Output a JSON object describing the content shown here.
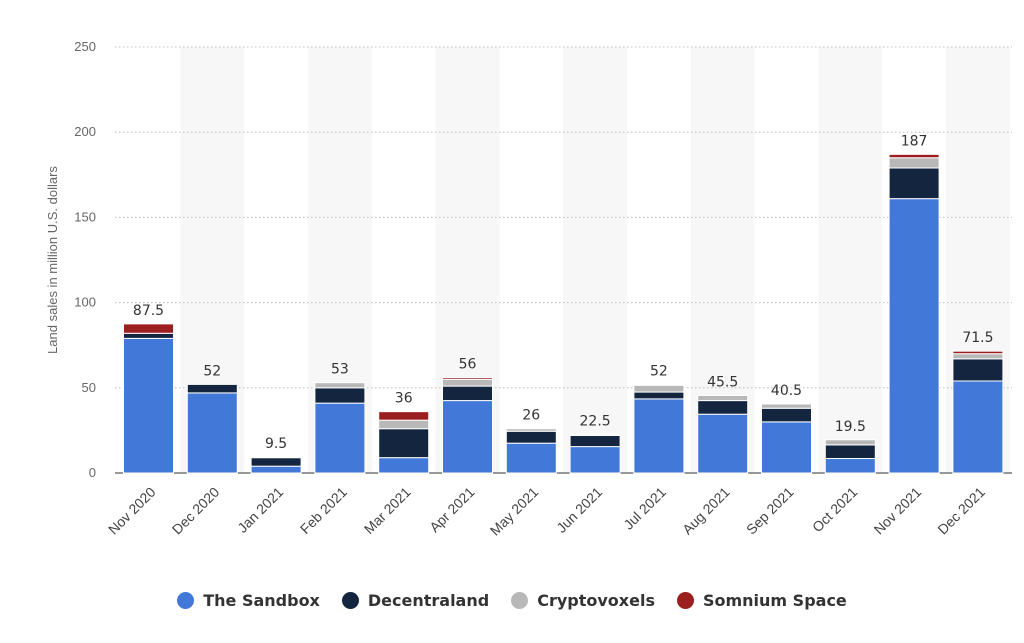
{
  "chart_data": {
    "type": "bar",
    "stacked": true,
    "ylabel": "Land sales in million U.S. dollars",
    "ylim": [
      0,
      250
    ],
    "yticks": [
      0,
      50,
      100,
      150,
      200,
      250
    ],
    "grid": true,
    "legend_position": "bottom",
    "categories": [
      "Nov 2020",
      "Dec 2020",
      "Jan 2021",
      "Feb 2021",
      "Mar 2021",
      "Apr 2021",
      "May 2021",
      "Jun 2021",
      "Jul 2021",
      "Aug 2021",
      "Sep 2021",
      "Oct 2021",
      "Nov 2021",
      "Dec 2021"
    ],
    "totals": [
      "87.5",
      "52",
      "9.5",
      "53",
      "36",
      "56",
      "26",
      "22.5",
      "52",
      "45.5",
      "40.5",
      "19.5",
      "187",
      "71.5"
    ],
    "series": [
      {
        "name": "The Sandbox",
        "color": "#4278d8",
        "values": [
          79,
          47,
          4,
          41,
          9,
          42.5,
          17.5,
          15.5,
          43.5,
          34.5,
          30,
          8.5,
          161,
          54
        ]
      },
      {
        "name": "Decentraland",
        "color": "#13253f",
        "values": [
          3,
          5,
          5,
          9,
          17,
          8.5,
          7,
          6.5,
          4,
          8,
          8,
          8,
          18,
          13
        ]
      },
      {
        "name": "Cryptovoxels",
        "color": "#b8b8b8",
        "values": [
          0,
          0,
          0,
          3,
          5,
          4,
          1.5,
          0.5,
          4,
          3,
          2.5,
          3,
          6,
          3
        ]
      },
      {
        "name": "Somnium Space",
        "color": "#9b1f1f",
        "values": [
          5.5,
          0,
          0.5,
          0,
          5,
          1,
          0,
          0,
          0.5,
          0,
          0,
          0,
          2,
          1.5
        ]
      }
    ]
  }
}
